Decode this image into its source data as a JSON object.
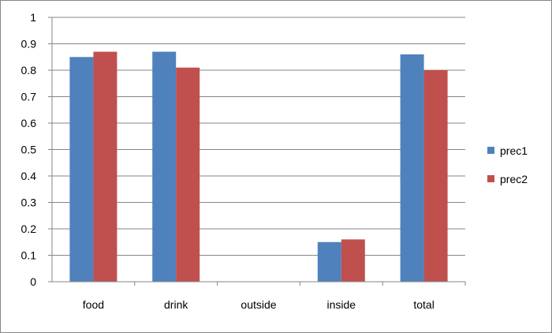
{
  "chart_data": {
    "type": "bar",
    "categories": [
      "food",
      "drink",
      "outside",
      "inside",
      "total"
    ],
    "series": [
      {
        "name": "prec1",
        "values": [
          0.85,
          0.87,
          0,
          0.15,
          0.86
        ],
        "color": "#4F81BD"
      },
      {
        "name": "prec2",
        "values": [
          0.87,
          0.81,
          0,
          0.16,
          0.8
        ],
        "color": "#C0504D"
      }
    ],
    "ylim": [
      0,
      1
    ],
    "yticks": [
      "0",
      "0.1",
      "0.2",
      "0.3",
      "0.4",
      "0.5",
      "0.6",
      "0.7",
      "0.8",
      "0.9",
      "1"
    ],
    "grid": true,
    "legend": "right"
  }
}
